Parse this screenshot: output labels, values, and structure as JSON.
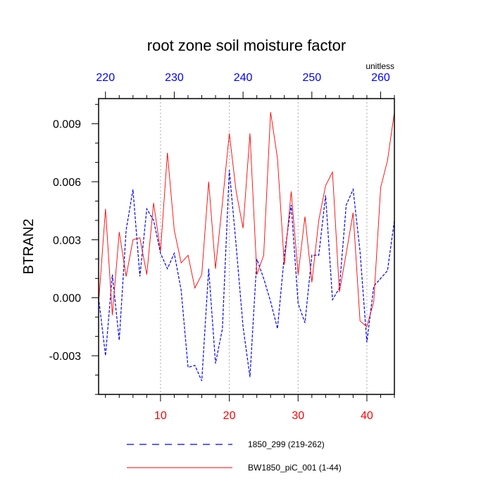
{
  "chart_data": {
    "type": "line",
    "title": "root zone soil moisture factor",
    "units": "unitless",
    "ylabel": "BTRAN2",
    "xlabel": "",
    "xlim": [
      1,
      44
    ],
    "ylim": [
      -0.005,
      0.0103
    ],
    "yticks": [
      {
        "value": -0.003,
        "label": "-0.003"
      },
      {
        "value": 0.0,
        "label": "0.000"
      },
      {
        "value": 0.003,
        "label": "0.003"
      },
      {
        "value": 0.006,
        "label": "0.006"
      },
      {
        "value": 0.009,
        "label": "0.009"
      }
    ],
    "xticks_bottom": [
      {
        "value": 10,
        "label": "10"
      },
      {
        "value": 20,
        "label": "20"
      },
      {
        "value": 30,
        "label": "30"
      },
      {
        "value": 40,
        "label": "40"
      }
    ],
    "top_axis_offset": 218,
    "xticks_top": [
      {
        "value": 220,
        "label": "220"
      },
      {
        "value": 230,
        "label": "230"
      },
      {
        "value": 240,
        "label": "240"
      },
      {
        "value": 250,
        "label": "250"
      },
      {
        "value": 260,
        "label": "260"
      }
    ],
    "grid": "vertical-dotted",
    "legend_position": "bottom",
    "series": [
      {
        "name": "1850_299 (219-262)",
        "color": "#0000ff",
        "style": "dashed",
        "values": [
          0.0,
          -0.003,
          0.0012,
          -0.0022,
          0.0035,
          0.0056,
          0.0011,
          0.0046,
          0.004,
          0.0023,
          0.0015,
          0.0023,
          0.0004,
          -0.0036,
          -0.0035,
          -0.0043,
          0.0015,
          -0.0034,
          -0.0016,
          0.0066,
          0.0027,
          -0.0015,
          -0.0041,
          0.002,
          0.001,
          -0.0002,
          -0.0016,
          0.0022,
          0.0048,
          -0.0003,
          -0.0013,
          0.0022,
          0.0022,
          0.0053,
          -0.0001,
          0.0005,
          0.0048,
          0.0056,
          0.0024,
          -0.0023,
          0.0006,
          0.001,
          0.0014,
          0.004
        ]
      },
      {
        "name": "BW1850_piC_001 (1-44)",
        "color": "#ff0000",
        "style": "solid",
        "values": [
          -0.0003,
          0.0046,
          -0.0009,
          0.0034,
          0.0011,
          0.003,
          0.0031,
          0.0012,
          0.0049,
          0.0024,
          0.0075,
          0.0035,
          0.0018,
          0.0022,
          0.0005,
          0.0012,
          0.006,
          0.0015,
          0.0049,
          0.0085,
          0.0055,
          0.0036,
          0.0085,
          0.0012,
          0.0022,
          0.0096,
          0.0072,
          0.0017,
          0.0055,
          0.0012,
          0.0042,
          0.0008,
          0.004,
          0.0058,
          0.0065,
          0.0003,
          0.0023,
          0.0044,
          -0.0012,
          -0.0015,
          -0.0002,
          0.0057,
          0.0071,
          0.0096
        ]
      }
    ]
  }
}
